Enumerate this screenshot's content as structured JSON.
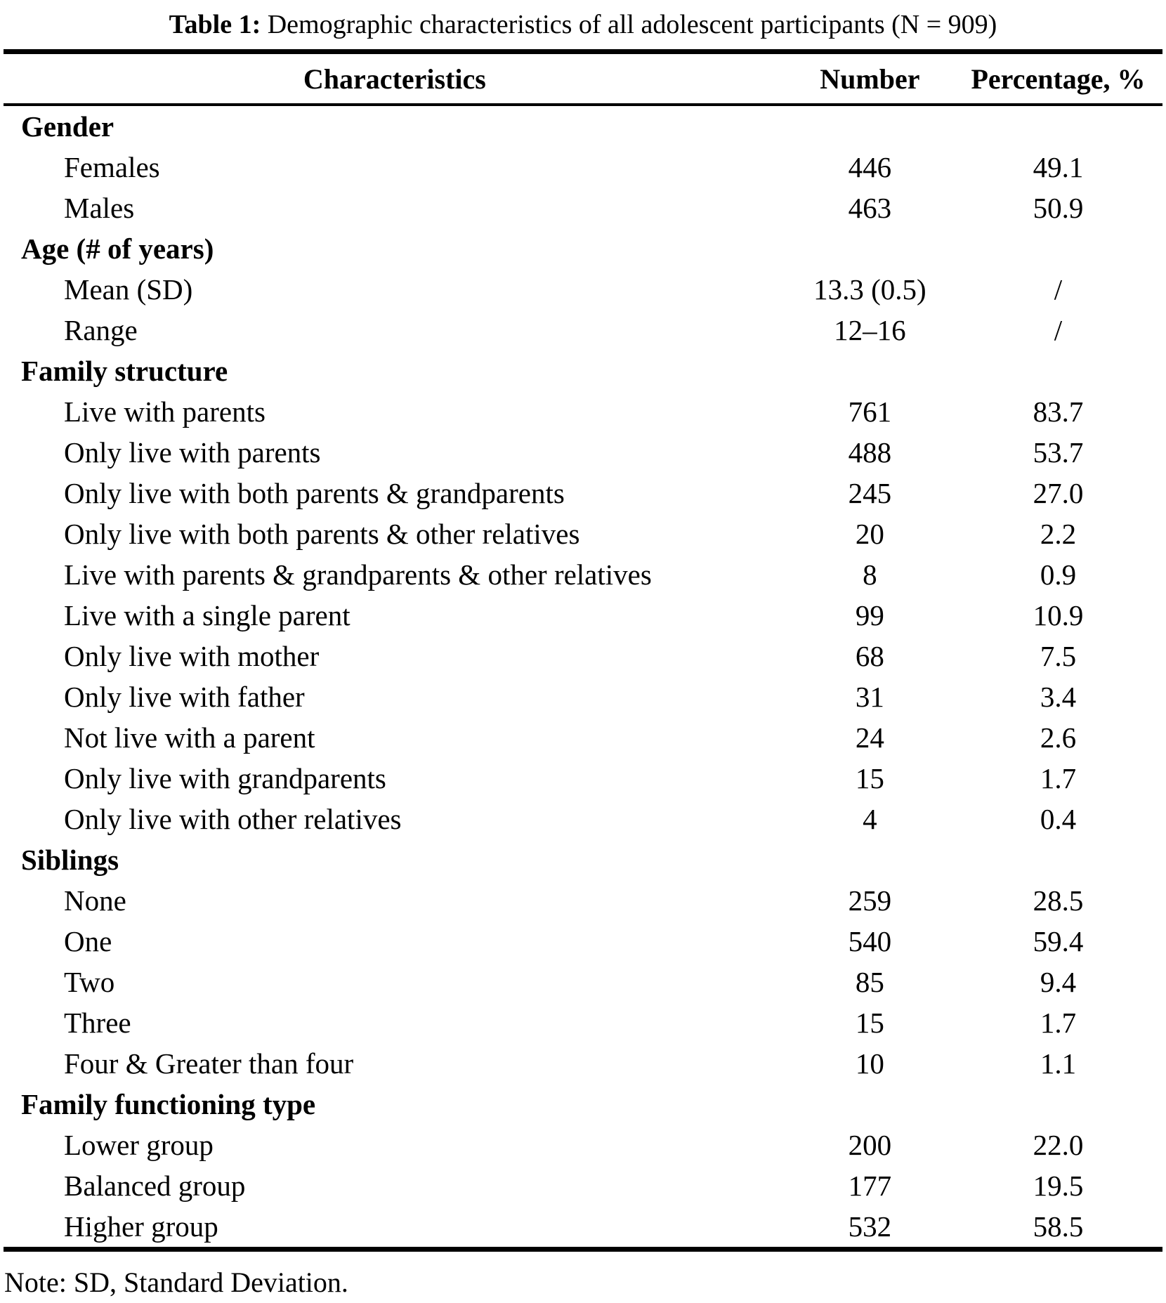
{
  "title": {
    "label": "Table 1:",
    "caption": " Demographic characteristics of all adolescent participants (N = 909)"
  },
  "table": {
    "columns": [
      "Characteristics",
      "Number",
      "Percentage, %"
    ],
    "rows": [
      {
        "type": "section",
        "characteristic": "Gender",
        "number": "",
        "percentage": ""
      },
      {
        "type": "item",
        "characteristic": "Females",
        "number": "446",
        "percentage": "49.1"
      },
      {
        "type": "item",
        "characteristic": "Males",
        "number": "463",
        "percentage": "50.9"
      },
      {
        "type": "section",
        "characteristic": "Age (# of years)",
        "number": "",
        "percentage": ""
      },
      {
        "type": "item",
        "characteristic": "Mean (SD)",
        "number": "13.3 (0.5)",
        "percentage": "/"
      },
      {
        "type": "item",
        "characteristic": "Range",
        "number": "12–16",
        "percentage": "/"
      },
      {
        "type": "section",
        "characteristic": "Family structure",
        "number": "",
        "percentage": ""
      },
      {
        "type": "item",
        "characteristic": "Live with parents",
        "number": "761",
        "percentage": "83.7"
      },
      {
        "type": "item",
        "characteristic": "Only live with parents",
        "number": "488",
        "percentage": "53.7"
      },
      {
        "type": "item",
        "characteristic": "Only live with both parents & grandparents",
        "number": "245",
        "percentage": "27.0"
      },
      {
        "type": "item",
        "characteristic": "Only live with both parents & other relatives",
        "number": "20",
        "percentage": "2.2"
      },
      {
        "type": "item",
        "characteristic": "Live with parents & grandparents & other relatives",
        "number": "8",
        "percentage": "0.9"
      },
      {
        "type": "item",
        "characteristic": "Live with a single parent",
        "number": "99",
        "percentage": "10.9"
      },
      {
        "type": "item",
        "characteristic": "Only live with mother",
        "number": "68",
        "percentage": "7.5"
      },
      {
        "type": "item",
        "characteristic": "Only live with father",
        "number": "31",
        "percentage": "3.4"
      },
      {
        "type": "item",
        "characteristic": "Not live with a parent",
        "number": "24",
        "percentage": "2.6"
      },
      {
        "type": "item",
        "characteristic": "Only live with grandparents",
        "number": "15",
        "percentage": "1.7"
      },
      {
        "type": "item",
        "characteristic": "Only live with other relatives",
        "number": "4",
        "percentage": "0.4"
      },
      {
        "type": "section",
        "characteristic": "Siblings",
        "number": "",
        "percentage": ""
      },
      {
        "type": "item",
        "characteristic": "None",
        "number": "259",
        "percentage": "28.5"
      },
      {
        "type": "item",
        "characteristic": "One",
        "number": "540",
        "percentage": "59.4"
      },
      {
        "type": "item",
        "characteristic": "Two",
        "number": "85",
        "percentage": "9.4"
      },
      {
        "type": "item",
        "characteristic": "Three",
        "number": "15",
        "percentage": "1.7"
      },
      {
        "type": "item",
        "characteristic": "Four & Greater than four",
        "number": "10",
        "percentage": "1.1"
      },
      {
        "type": "section",
        "characteristic": "Family functioning type",
        "number": "",
        "percentage": ""
      },
      {
        "type": "item",
        "characteristic": "Lower group",
        "number": "200",
        "percentage": "22.0"
      },
      {
        "type": "item",
        "characteristic": "Balanced group",
        "number": "177",
        "percentage": "19.5"
      },
      {
        "type": "item",
        "characteristic": "Higher group",
        "number": "532",
        "percentage": "58.5"
      }
    ]
  },
  "note": "Note: SD, Standard Deviation."
}
